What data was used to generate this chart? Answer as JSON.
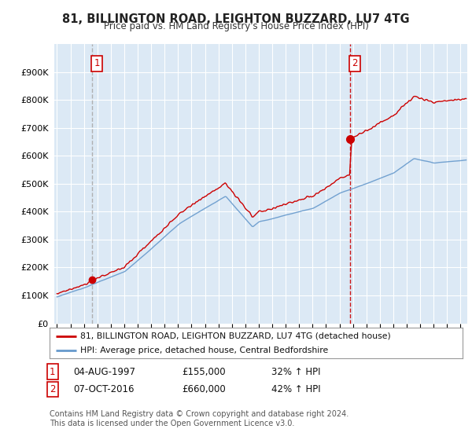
{
  "title": "81, BILLINGTON ROAD, LEIGHTON BUZZARD, LU7 4TG",
  "subtitle": "Price paid vs. HM Land Registry's House Price Index (HPI)",
  "red_label": "81, BILLINGTON ROAD, LEIGHTON BUZZARD, LU7 4TG (detached house)",
  "blue_label": "HPI: Average price, detached house, Central Bedfordshire",
  "annotation1": {
    "num": "1",
    "date": "04-AUG-1997",
    "price": "£155,000",
    "pct": "32% ↑ HPI"
  },
  "annotation2": {
    "num": "2",
    "date": "07-OCT-2016",
    "price": "£660,000",
    "pct": "42% ↑ HPI"
  },
  "footer": "Contains HM Land Registry data © Crown copyright and database right 2024.\nThis data is licensed under the Open Government Licence v3.0.",
  "sale1_year": 1997.6,
  "sale1_price": 155000,
  "sale2_year": 2016.77,
  "sale2_price": 660000,
  "red_color": "#cc0000",
  "blue_color": "#6699cc",
  "vline1_color": "#aaaaaa",
  "vline2_color": "#cc0000",
  "chart_bg": "#dce9f5",
  "background_color": "#ffffff",
  "grid_color": "#ffffff",
  "ylim": [
    0,
    1000000
  ],
  "xlim": [
    1994.8,
    2025.5
  ],
  "yticks": [
    0,
    100000,
    200000,
    300000,
    400000,
    500000,
    600000,
    700000,
    800000,
    900000
  ]
}
